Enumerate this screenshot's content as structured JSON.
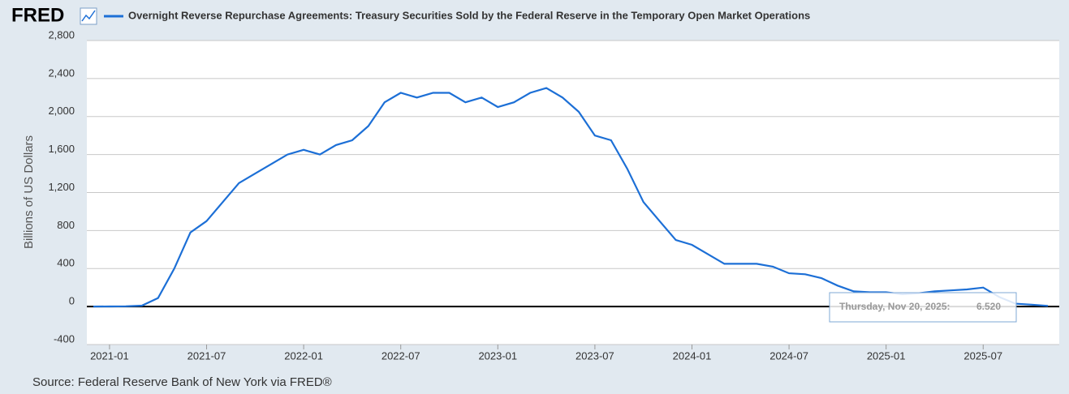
{
  "logo": "FRED",
  "chart_data": {
    "type": "line",
    "title": "Overnight Reverse Repurchase Agreements: Treasury Securities Sold by the Federal Reserve in the Temporary Open Market Operations",
    "y_label": "Billions of US Dollars",
    "source": "Source: Federal Reserve Bank of New York via FRED®",
    "x": [
      "2020-12",
      "2021-01",
      "2021-02",
      "2021-03",
      "2021-04",
      "2021-05",
      "2021-06",
      "2021-07",
      "2021-08",
      "2021-09",
      "2021-10",
      "2021-11",
      "2021-12",
      "2022-01",
      "2022-02",
      "2022-03",
      "2022-04",
      "2022-05",
      "2022-06",
      "2022-07",
      "2022-08",
      "2022-09",
      "2022-10",
      "2022-11",
      "2022-12",
      "2023-01",
      "2023-02",
      "2023-03",
      "2023-04",
      "2023-05",
      "2023-06",
      "2023-07",
      "2023-08",
      "2023-09",
      "2023-10",
      "2023-11",
      "2023-12",
      "2024-01",
      "2024-02",
      "2024-03",
      "2024-04",
      "2024-05",
      "2024-06",
      "2024-07",
      "2024-08",
      "2024-09",
      "2024-10",
      "2024-11",
      "2024-12",
      "2025-01",
      "2025-02",
      "2025-03",
      "2025-04",
      "2025-05",
      "2025-06",
      "2025-07",
      "2025-08",
      "2025-09",
      "2025-10",
      "2025-11"
    ],
    "series": [
      {
        "name": "Overnight Reverse Repurchase Agreements: Treasury Securities Sold by the Federal Reserve in the Temporary Open Market Operations",
        "color": "#1c6fd6",
        "values": [
          0,
          1,
          3,
          10,
          90,
          400,
          780,
          900,
          1100,
          1300,
          1400,
          1500,
          1600,
          1650,
          1600,
          1700,
          1750,
          1900,
          2150,
          2250,
          2200,
          2250,
          2250,
          2150,
          2200,
          2100,
          2150,
          2250,
          2300,
          2200,
          2050,
          1800,
          1750,
          1450,
          1100,
          900,
          700,
          650,
          550,
          450,
          450,
          450,
          420,
          350,
          340,
          300,
          220,
          160,
          150,
          150,
          130,
          140,
          160,
          170,
          180,
          200,
          100,
          30,
          20,
          7
        ]
      }
    ],
    "xlim": [
      "2020-12",
      "2025-11"
    ],
    "xticks": [
      "2021-01",
      "2021-07",
      "2022-01",
      "2022-07",
      "2023-01",
      "2023-07",
      "2024-01",
      "2024-07",
      "2025-01",
      "2025-07"
    ],
    "ylim": [
      -400,
      2800
    ],
    "yticks": [
      -400,
      0,
      400,
      800,
      {
        "value": 1200,
        "label": "1,200"
      },
      {
        "value": 1600,
        "label": "1,600"
      },
      {
        "value": 2000,
        "label": "2,000"
      },
      {
        "value": 2400,
        "label": "2,400"
      },
      {
        "value": 2800,
        "label": "2,800"
      }
    ],
    "grid": true,
    "tooltip": {
      "label": "Thursday, Nov 20, 2025:",
      "value": 6.52,
      "value_label": "6.520"
    }
  }
}
